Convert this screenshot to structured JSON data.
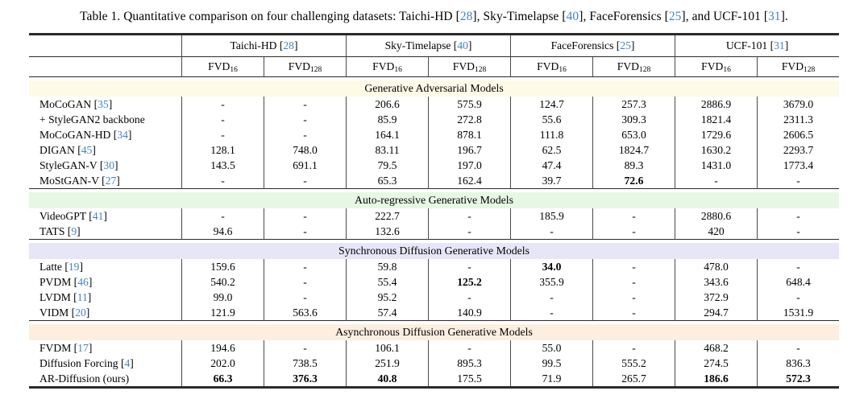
{
  "caption": {
    "segments": [
      {
        "t": "Table 1. Quantitative comparison on four challenging datasets: Taichi-HD ["
      },
      {
        "cite": "28"
      },
      {
        "t": "], Sky-Timelapse ["
      },
      {
        "cite": "40"
      },
      {
        "t": "], FaceForensics ["
      },
      {
        "cite": "25"
      },
      {
        "t": "], and UCF-101 ["
      },
      {
        "cite": "31"
      },
      {
        "t": "]."
      }
    ]
  },
  "colors": {
    "citation_blue": "#4383c4",
    "rule_dark": "#2b2b2b",
    "divider_gray": "#4a4a4a",
    "band_gan": "#fdfbe6",
    "band_autoregressive": "#e6f8e3",
    "band_synchronous": "#e6e6f8",
    "band_asynchronous": "#fcefdf"
  },
  "table": {
    "dataset_groups": [
      {
        "name": "Taichi-HD",
        "cite": "28"
      },
      {
        "name": "Sky-Timelapse",
        "cite": "40"
      },
      {
        "name": "FaceForensics",
        "cite": "25"
      },
      {
        "name": "UCF-101",
        "cite": "31"
      }
    ],
    "metric": {
      "base": "FVD",
      "subs": [
        "16",
        "128"
      ]
    },
    "sections": [
      {
        "title": "Generative Adversarial Models",
        "band_color_key": "band_gan",
        "rows": [
          {
            "label": "MoCoGAN",
            "cite": "35",
            "values": [
              "-",
              "-",
              "206.6",
              "575.9",
              "124.7",
              "257.3",
              "2886.9",
              "3679.0"
            ],
            "bold": []
          },
          {
            "label": "+ StyleGAN2 backbone",
            "cite": null,
            "values": [
              "-",
              "-",
              "85.9",
              "272.8",
              "55.6",
              "309.3",
              "1821.4",
              "2311.3"
            ],
            "bold": []
          },
          {
            "label": "MoCoGAN-HD",
            "cite": "34",
            "values": [
              "-",
              "-",
              "164.1",
              "878.1",
              "111.8",
              "653.0",
              "1729.6",
              "2606.5"
            ],
            "bold": []
          },
          {
            "label": "DIGAN",
            "cite": "45",
            "values": [
              "128.1",
              "748.0",
              "83.11",
              "196.7",
              "62.5",
              "1824.7",
              "1630.2",
              "2293.7"
            ],
            "bold": []
          },
          {
            "label": "StyleGAN-V",
            "cite": "30",
            "values": [
              "143.5",
              "691.1",
              "79.5",
              "197.0",
              "47.4",
              "89.3",
              "1431.0",
              "1773.4"
            ],
            "bold": []
          },
          {
            "label": "MoStGAN-V",
            "cite": "27",
            "values": [
              "-",
              "-",
              "65.3",
              "162.4",
              "39.7",
              "72.6",
              "-",
              "-"
            ],
            "bold": [
              5
            ]
          }
        ]
      },
      {
        "title": "Auto-regressive Generative Models",
        "band_color_key": "band_autoregressive",
        "rows": [
          {
            "label": "VideoGPT",
            "cite": "41",
            "values": [
              "-",
              "-",
              "222.7",
              "-",
              "185.9",
              "-",
              "2880.6",
              "-"
            ],
            "bold": []
          },
          {
            "label": "TATS",
            "cite": "9",
            "values": [
              "94.6",
              "-",
              "132.6",
              "-",
              "-",
              "-",
              "420",
              "-"
            ],
            "bold": []
          }
        ]
      },
      {
        "title": "Synchronous Diffusion Generative Models",
        "band_color_key": "band_synchronous",
        "rows": [
          {
            "label": "Latte",
            "cite": "19",
            "values": [
              "159.6",
              "-",
              "59.8",
              "-",
              "34.0",
              "-",
              "478.0",
              "-"
            ],
            "bold": [
              4
            ]
          },
          {
            "label": "PVDM",
            "cite": "46",
            "values": [
              "540.2",
              "-",
              "55.4",
              "125.2",
              "355.9",
              "-",
              "343.6",
              "648.4"
            ],
            "bold": [
              3
            ]
          },
          {
            "label": "LVDM",
            "cite": "11",
            "values": [
              "99.0",
              "-",
              "95.2",
              "-",
              "-",
              "-",
              "372.9",
              "-"
            ],
            "bold": []
          },
          {
            "label": "VIDM",
            "cite": "20",
            "values": [
              "121.9",
              "563.6",
              "57.4",
              "140.9",
              "-",
              "-",
              "294.7",
              "1531.9"
            ],
            "bold": []
          }
        ]
      },
      {
        "title": "Asynchronous Diffusion Generative Models",
        "band_color_key": "band_asynchronous",
        "rows": [
          {
            "label": "FVDM",
            "cite": "17",
            "values": [
              "194.6",
              "-",
              "106.1",
              "-",
              "55.0",
              "-",
              "468.2",
              "-"
            ],
            "bold": []
          },
          {
            "label": "Diffusion Forcing",
            "cite": "4",
            "values": [
              "202.0",
              "738.5",
              "251.9",
              "895.3",
              "99.5",
              "555.2",
              "274.5",
              "836.3"
            ],
            "bold": []
          },
          {
            "label": "AR-Diffusion (ours)",
            "cite": null,
            "values": [
              "66.3",
              "376.3",
              "40.8",
              "175.5",
              "71.9",
              "265.7",
              "186.6",
              "572.3"
            ],
            "bold": [
              0,
              1,
              2,
              6,
              7
            ]
          }
        ]
      }
    ]
  }
}
